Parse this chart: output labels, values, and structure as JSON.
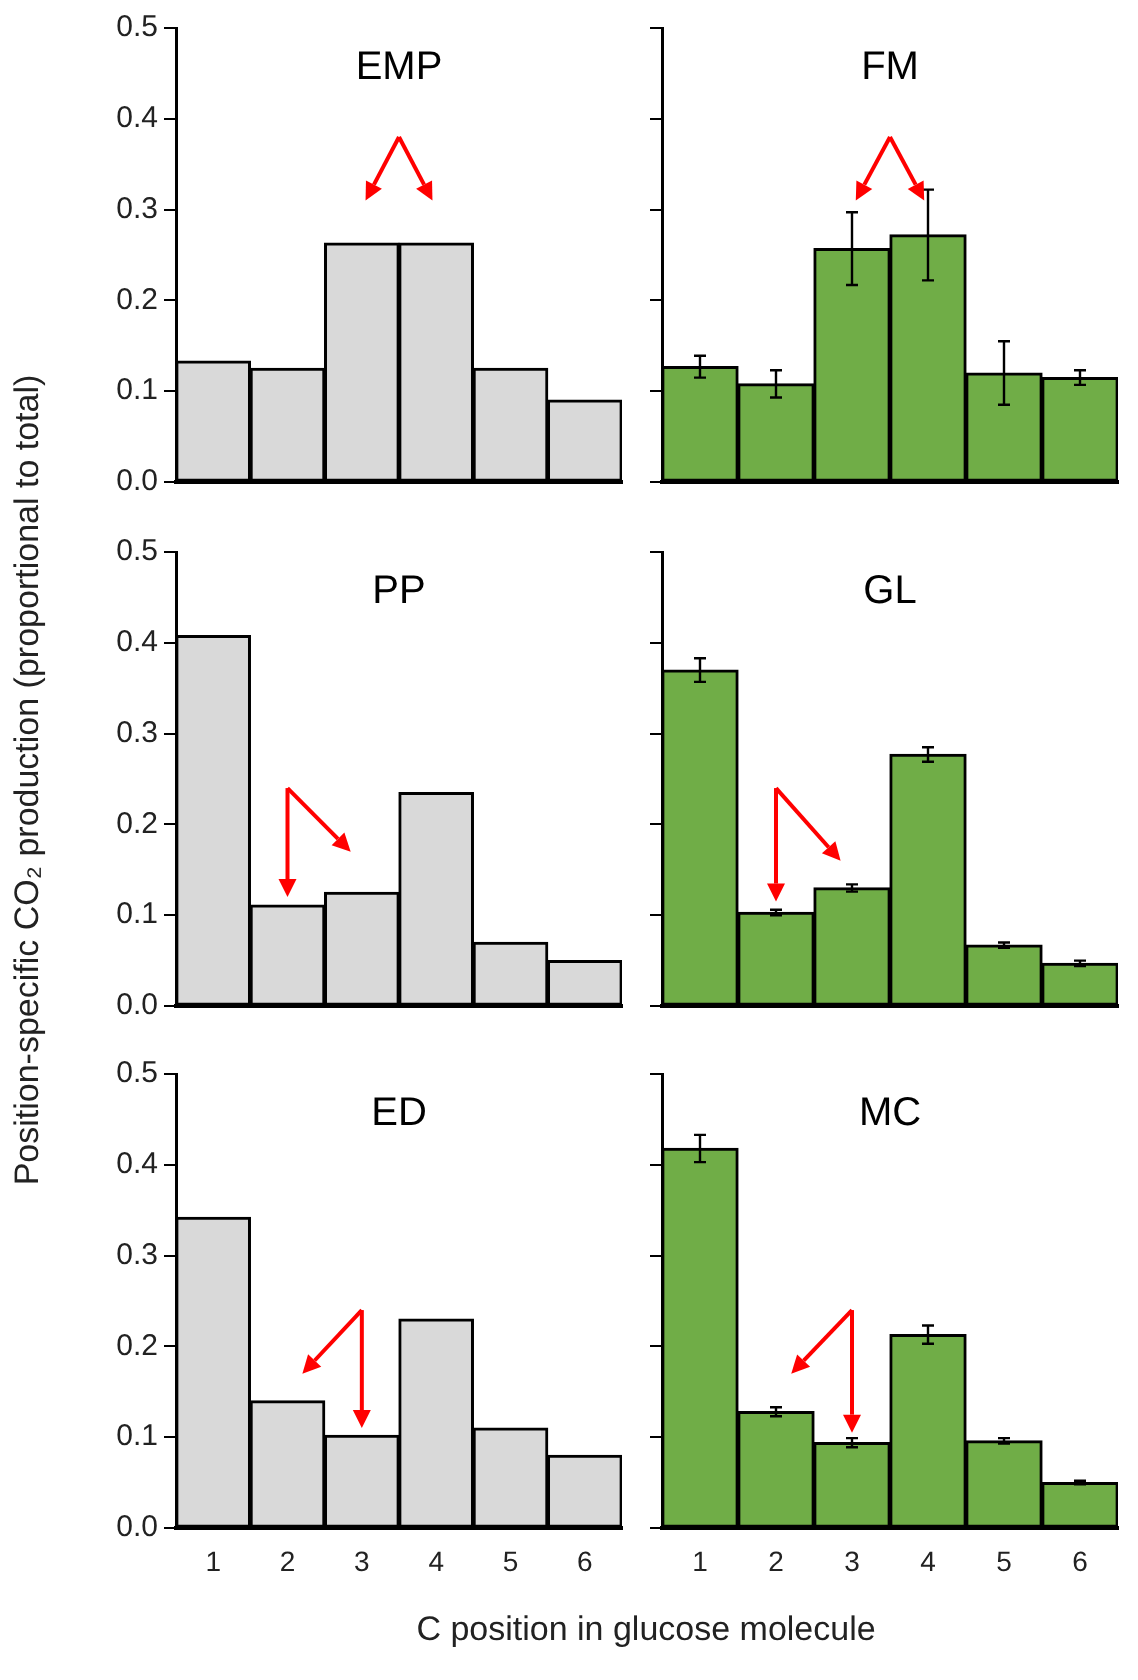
{
  "chart_data": [
    {
      "type": "bar",
      "title": "EMP",
      "categories": [
        "1",
        "2",
        "3",
        "4",
        "5",
        "6"
      ],
      "values": [
        0.133,
        0.125,
        0.263,
        0.263,
        0.125,
        0.09
      ],
      "color": "#d9d9d9",
      "ylim": [
        0,
        0.5
      ],
      "yticks": [
        {
          "value": 0,
          "label": "0.0"
        },
        {
          "value": 0.1,
          "label": "0.1"
        },
        {
          "value": 0.2,
          "label": "0.2"
        },
        {
          "value": 0.3,
          "label": "0.3"
        },
        {
          "value": 0.4,
          "label": "0.4"
        },
        {
          "value": 0.5,
          "label": "0.5"
        }
      ],
      "tick_labels": "y"
    },
    {
      "type": "bar",
      "title": "FM",
      "categories": [
        "1",
        "2",
        "3",
        "4",
        "5",
        "6"
      ],
      "values": [
        0.127,
        0.108,
        0.257,
        0.272,
        0.12,
        0.115
      ],
      "errors": [
        0.012,
        0.015,
        0.04,
        0.05,
        0.035,
        0.008
      ],
      "color": "#70ad47",
      "ylim": [
        0,
        0.5
      ],
      "yticks": [
        {
          "value": 0,
          "label": null
        },
        {
          "value": 0.1,
          "label": null
        },
        {
          "value": 0.2,
          "label": null
        },
        {
          "value": 0.3,
          "label": null
        },
        {
          "value": 0.4,
          "label": null
        },
        {
          "value": 0.5,
          "label": null
        }
      ],
      "tick_labels": false
    },
    {
      "type": "bar",
      "title": "PP",
      "ylabel": "Position-specific CO₂ production (proportional to total)",
      "categories": [
        "1",
        "2",
        "3",
        "4",
        "5",
        "6"
      ],
      "values": [
        0.408,
        0.111,
        0.125,
        0.235,
        0.07,
        0.05
      ],
      "color": "#d9d9d9",
      "ylim": [
        0,
        0.5
      ],
      "yticks": [
        {
          "value": 0,
          "label": "0.0"
        },
        {
          "value": 0.1,
          "label": "0.1"
        },
        {
          "value": 0.2,
          "label": "0.2"
        },
        {
          "value": 0.3,
          "label": "0.3"
        },
        {
          "value": 0.4,
          "label": "0.4"
        },
        {
          "value": 0.5,
          "label": "0.5"
        }
      ],
      "tick_labels": "y"
    },
    {
      "type": "bar",
      "title": "GL",
      "categories": [
        "1",
        "2",
        "3",
        "4",
        "5",
        "6"
      ],
      "values": [
        0.37,
        0.103,
        0.13,
        0.277,
        0.067,
        0.047
      ],
      "errors": [
        0.013,
        0.003,
        0.004,
        0.008,
        0.003,
        0.003
      ],
      "color": "#70ad47",
      "ylim": [
        0,
        0.5
      ],
      "yticks": [
        {
          "value": 0,
          "label": null
        },
        {
          "value": 0.1,
          "label": null
        },
        {
          "value": 0.2,
          "label": null
        },
        {
          "value": 0.3,
          "label": null
        },
        {
          "value": 0.4,
          "label": null
        },
        {
          "value": 0.5,
          "label": null
        }
      ],
      "tick_labels": false
    },
    {
      "type": "bar",
      "title": "ED",
      "xlabel": "C position in glucose molecule",
      "categories": [
        "1",
        "2",
        "3",
        "4",
        "5",
        "6"
      ],
      "values": [
        0.342,
        0.14,
        0.102,
        0.23,
        0.11,
        0.08
      ],
      "color": "#d9d9d9",
      "ylim": [
        0,
        0.5
      ],
      "yticks": [
        {
          "value": 0,
          "label": "0.0"
        },
        {
          "value": 0.1,
          "label": "0.1"
        },
        {
          "value": 0.2,
          "label": "0.2"
        },
        {
          "value": 0.3,
          "label": "0.3"
        },
        {
          "value": 0.4,
          "label": "0.4"
        },
        {
          "value": 0.5,
          "label": "0.5"
        }
      ]
    },
    {
      "type": "bar",
      "title": "MC",
      "categories": [
        "1",
        "2",
        "3",
        "4",
        "5",
        "6"
      ],
      "values": [
        0.418,
        0.128,
        0.094,
        0.213,
        0.096,
        0.05
      ],
      "errors": [
        0.015,
        0.005,
        0.005,
        0.01,
        0.003,
        0.002
      ],
      "color": "#70ad47",
      "ylim": [
        0,
        0.5
      ],
      "yticks": [
        {
          "value": 0,
          "label": null
        },
        {
          "value": 0.1,
          "label": null
        },
        {
          "value": 0.2,
          "label": null
        },
        {
          "value": 0.3,
          "label": null
        },
        {
          "value": 0.4,
          "label": null
        },
        {
          "value": 0.5,
          "label": null
        }
      ],
      "tick_labels": "x"
    }
  ]
}
